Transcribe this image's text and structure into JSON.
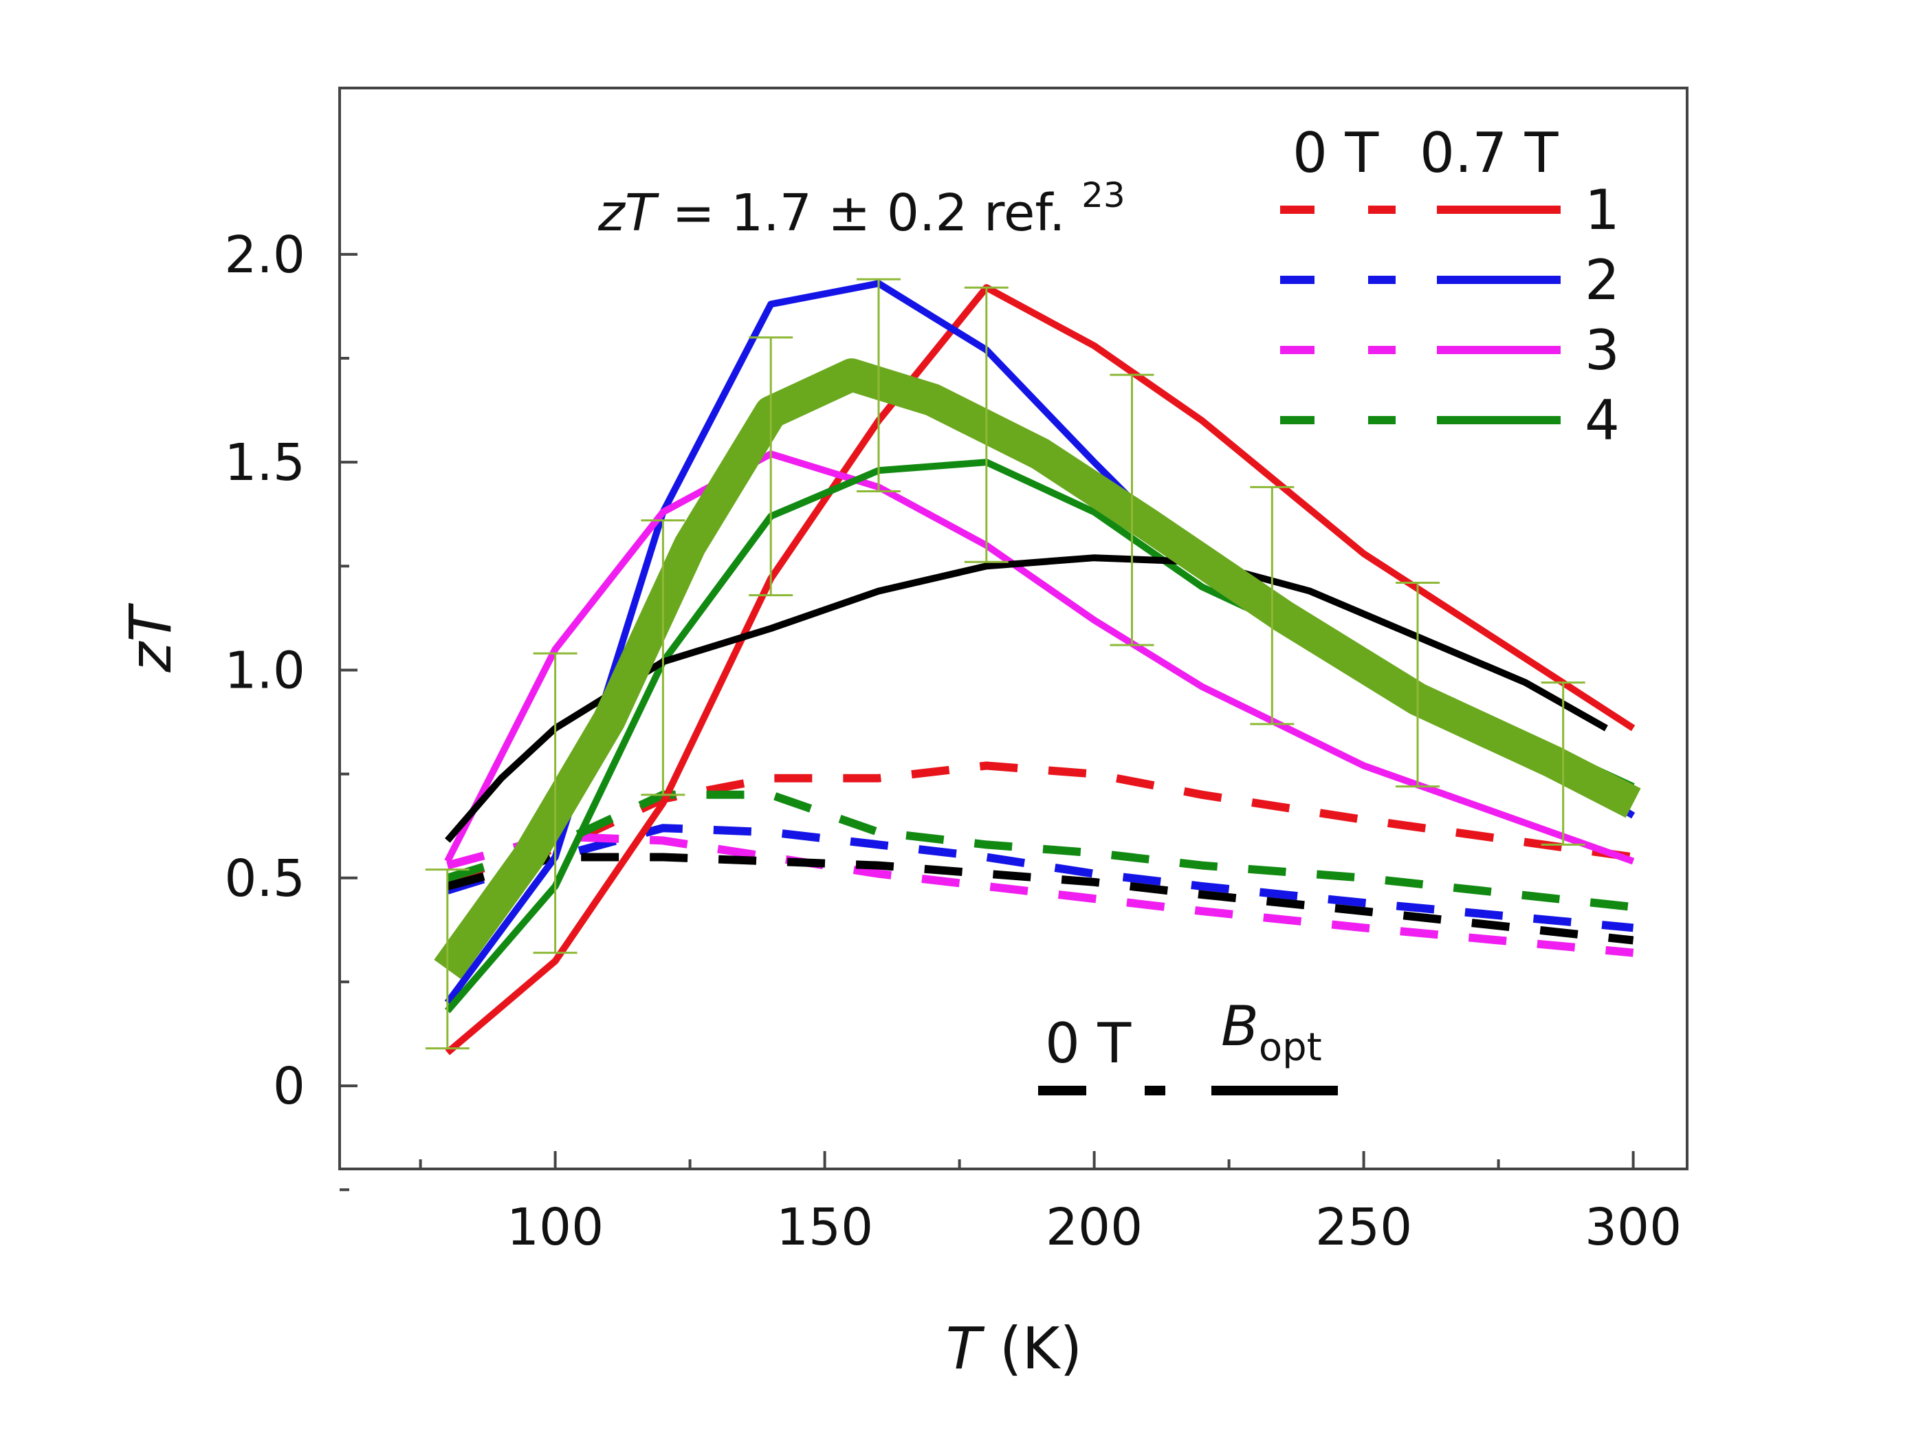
{
  "chart_data": {
    "type": "line",
    "title": "",
    "xlabel_var": "T",
    "xlabel_unit": "(K)",
    "ylabel": "zT",
    "xlim": [
      60,
      310
    ],
    "ylim": [
      -0.2,
      2.4
    ],
    "x_ticks": [
      100,
      150,
      200,
      250,
      300
    ],
    "x_tick_labels": [
      "100",
      "150",
      "200",
      "250",
      "300"
    ],
    "y_ticks": [
      0,
      0.5,
      1.0,
      1.5,
      2.0
    ],
    "y_tick_labels": [
      "0",
      "0.5",
      "1.0",
      "1.5",
      "2.0"
    ],
    "grid": false,
    "annotation": {
      "var": "zT",
      "text": " = 1.7 ± 0.2 ref. ",
      "superscript": "23"
    },
    "legend": {
      "placement": "top-right",
      "header_0T": "0 T",
      "header_07T": "0.7 T",
      "entries": [
        {
          "label": "1",
          "color": "#e8141c"
        },
        {
          "label": "2",
          "color": "#1414e6"
        },
        {
          "label": "3",
          "color": "#f01ef0"
        },
        {
          "label": "4",
          "color": "#128a12"
        }
      ]
    },
    "style_key": {
      "label_0T": "0 T",
      "label_bopt": "B",
      "label_bopt_sub": "opt"
    },
    "series": [
      {
        "name": "1",
        "field": "0.7 T",
        "color": "#e8141c",
        "dash": false,
        "x": [
          80,
          100,
          120,
          140,
          160,
          180,
          200,
          220,
          250,
          300
        ],
        "y": [
          0.08,
          0.3,
          0.68,
          1.22,
          1.6,
          1.92,
          1.78,
          1.6,
          1.28,
          0.86
        ]
      },
      {
        "name": "2",
        "field": "0.7 T",
        "color": "#1414e6",
        "dash": false,
        "x": [
          80,
          100,
          120,
          140,
          160,
          180,
          200,
          220,
          250,
          300
        ],
        "y": [
          0.2,
          0.55,
          1.38,
          1.88,
          1.93,
          1.77,
          1.5,
          1.24,
          1.04,
          0.65
        ]
      },
      {
        "name": "3",
        "field": "0.7 T",
        "color": "#f01ef0",
        "dash": false,
        "x": [
          80,
          100,
          120,
          140,
          160,
          180,
          200,
          220,
          250,
          300
        ],
        "y": [
          0.54,
          1.05,
          1.38,
          1.52,
          1.44,
          1.3,
          1.12,
          0.96,
          0.77,
          0.54
        ]
      },
      {
        "name": "4",
        "field": "0.7 T",
        "color": "#128a12",
        "dash": false,
        "x": [
          80,
          100,
          120,
          140,
          160,
          180,
          200,
          220,
          250,
          300
        ],
        "y": [
          0.18,
          0.48,
          1.02,
          1.37,
          1.48,
          1.5,
          1.38,
          1.2,
          1.02,
          0.72
        ]
      },
      {
        "name": "black",
        "field": "0.7 T",
        "color": "#000000",
        "dash": false,
        "x": [
          80,
          90,
          100,
          120,
          140,
          160,
          180,
          200,
          220,
          240,
          260,
          280,
          295
        ],
        "y": [
          0.59,
          0.74,
          0.86,
          1.02,
          1.1,
          1.19,
          1.25,
          1.27,
          1.26,
          1.19,
          1.08,
          0.97,
          0.86
        ]
      },
      {
        "name": "1",
        "field": "0 T",
        "color": "#e8141c",
        "dash": true,
        "x": [
          80,
          100,
          120,
          140,
          160,
          180,
          200,
          220,
          250,
          300
        ],
        "y": [
          0.5,
          0.57,
          0.69,
          0.74,
          0.74,
          0.77,
          0.75,
          0.7,
          0.64,
          0.55
        ]
      },
      {
        "name": "2",
        "field": "0 T",
        "color": "#1414e6",
        "dash": true,
        "x": [
          80,
          100,
          120,
          140,
          160,
          180,
          200,
          220,
          250,
          300
        ],
        "y": [
          0.47,
          0.55,
          0.62,
          0.61,
          0.58,
          0.55,
          0.51,
          0.48,
          0.44,
          0.38
        ]
      },
      {
        "name": "3",
        "field": "0 T",
        "color": "#f01ef0",
        "dash": true,
        "x": [
          80,
          100,
          120,
          140,
          160,
          180,
          200,
          220,
          250,
          300
        ],
        "y": [
          0.53,
          0.6,
          0.59,
          0.55,
          0.51,
          0.48,
          0.45,
          0.42,
          0.38,
          0.32
        ]
      },
      {
        "name": "4",
        "field": "0 T",
        "color": "#128a12",
        "dash": true,
        "x": [
          80,
          100,
          120,
          140,
          160,
          180,
          200,
          220,
          250,
          300
        ],
        "y": [
          0.5,
          0.58,
          0.7,
          0.7,
          0.61,
          0.58,
          0.56,
          0.53,
          0.5,
          0.43
        ]
      },
      {
        "name": "black",
        "field": "0 T",
        "color": "#000000",
        "dash": true,
        "x": [
          80,
          100,
          120,
          140,
          160,
          180,
          200,
          220,
          250,
          300
        ],
        "y": [
          0.48,
          0.55,
          0.55,
          0.54,
          0.53,
          0.51,
          0.49,
          0.46,
          0.42,
          0.35
        ]
      }
    ],
    "average": {
      "name": "average",
      "color": "#6aa81e",
      "x": [
        80,
        95,
        110,
        125,
        140,
        155,
        170,
        190,
        210,
        235,
        260,
        285,
        300
      ],
      "y": [
        0.28,
        0.55,
        0.88,
        1.3,
        1.62,
        1.71,
        1.65,
        1.52,
        1.35,
        1.13,
        0.93,
        0.78,
        0.68
      ]
    },
    "error_bars": {
      "color": "#8db836",
      "points": [
        {
          "x": 80,
          "low": 0.09,
          "high": 0.52
        },
        {
          "x": 100,
          "low": 0.32,
          "high": 1.04
        },
        {
          "x": 120,
          "low": 0.7,
          "high": 1.36
        },
        {
          "x": 140,
          "low": 1.18,
          "high": 1.8
        },
        {
          "x": 160,
          "low": 1.43,
          "high": 1.94
        },
        {
          "x": 180,
          "low": 1.26,
          "high": 1.92
        },
        {
          "x": 207,
          "low": 1.06,
          "high": 1.71
        },
        {
          "x": 233,
          "low": 0.87,
          "high": 1.44
        },
        {
          "x": 260,
          "low": 0.72,
          "high": 1.21
        },
        {
          "x": 287,
          "low": 0.58,
          "high": 0.97
        }
      ]
    }
  }
}
